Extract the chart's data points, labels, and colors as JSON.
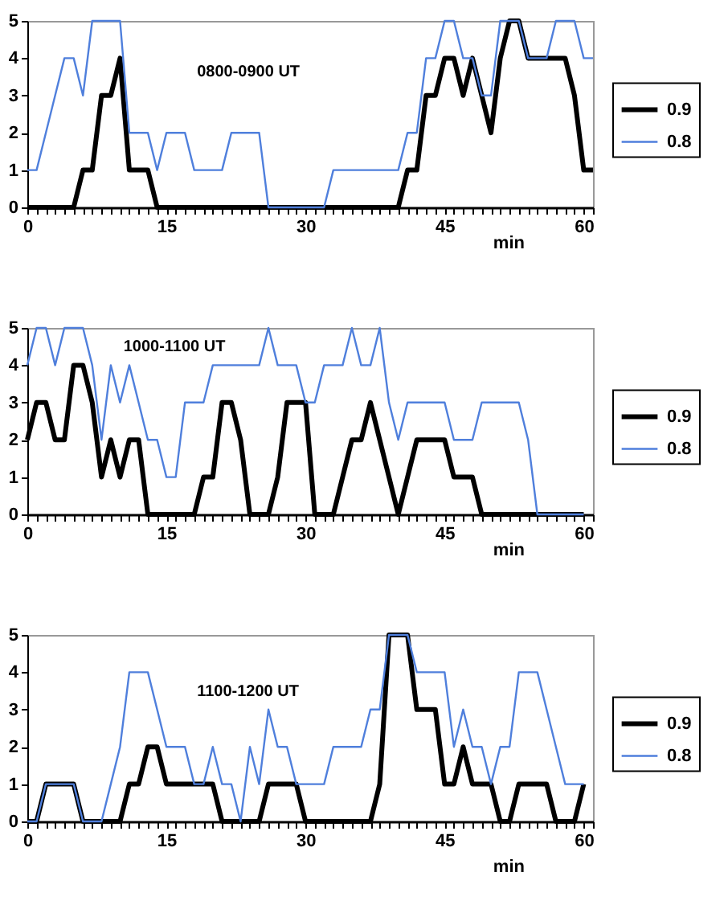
{
  "chart_data": [
    {
      "type": "line",
      "annotations": [
        "0800-0900 UT"
      ],
      "xlabel": "min",
      "legend": "right",
      "xlim": [
        0,
        61
      ],
      "ylim": [
        0,
        5
      ],
      "yticks": [
        0,
        1,
        2,
        3,
        4,
        5
      ],
      "xticks": [
        0,
        {
          "value": 1,
          "label": null
        },
        {
          "value": 2,
          "label": null
        },
        {
          "value": 3,
          "label": null
        },
        {
          "value": 4,
          "label": null
        },
        {
          "value": 5,
          "label": null
        },
        {
          "value": 6,
          "label": null
        },
        {
          "value": 7,
          "label": null
        },
        {
          "value": 8,
          "label": null
        },
        {
          "value": 9,
          "label": null
        },
        {
          "value": 10,
          "label": null
        },
        {
          "value": 11,
          "label": null
        },
        {
          "value": 12,
          "label": null
        },
        {
          "value": 13,
          "label": null
        },
        {
          "value": 14,
          "label": null
        },
        15,
        {
          "value": 16,
          "label": null
        },
        {
          "value": 17,
          "label": null
        },
        {
          "value": 18,
          "label": null
        },
        {
          "value": 19,
          "label": null
        },
        {
          "value": 20,
          "label": null
        },
        {
          "value": 21,
          "label": null
        },
        {
          "value": 22,
          "label": null
        },
        {
          "value": 23,
          "label": null
        },
        {
          "value": 24,
          "label": null
        },
        {
          "value": 25,
          "label": null
        },
        {
          "value": 26,
          "label": null
        },
        {
          "value": 27,
          "label": null
        },
        {
          "value": 28,
          "label": null
        },
        {
          "value": 29,
          "label": null
        },
        30,
        {
          "value": 31,
          "label": null
        },
        {
          "value": 32,
          "label": null
        },
        {
          "value": 33,
          "label": null
        },
        {
          "value": 34,
          "label": null
        },
        {
          "value": 35,
          "label": null
        },
        {
          "value": 36,
          "label": null
        },
        {
          "value": 37,
          "label": null
        },
        {
          "value": 38,
          "label": null
        },
        {
          "value": 39,
          "label": null
        },
        {
          "value": 40,
          "label": null
        },
        {
          "value": 41,
          "label": null
        },
        {
          "value": 42,
          "label": null
        },
        {
          "value": 43,
          "label": null
        },
        {
          "value": 44,
          "label": null
        },
        45,
        {
          "value": 46,
          "label": null
        },
        {
          "value": 47,
          "label": null
        },
        {
          "value": 48,
          "label": null
        },
        {
          "value": 49,
          "label": null
        },
        {
          "value": 50,
          "label": null
        },
        {
          "value": 51,
          "label": null
        },
        {
          "value": 52,
          "label": null
        },
        {
          "value": 53,
          "label": null
        },
        {
          "value": 54,
          "label": null
        },
        {
          "value": 55,
          "label": null
        },
        {
          "value": 56,
          "label": null
        },
        {
          "value": 57,
          "label": null
        },
        {
          "value": 58,
          "label": null
        },
        {
          "value": 59,
          "label": null
        },
        60,
        {
          "value": 61,
          "label": null
        }
      ],
      "x": [
        0,
        1,
        2,
        3,
        4,
        5,
        6,
        7,
        8,
        9,
        10,
        11,
        12,
        13,
        14,
        15,
        16,
        17,
        18,
        19,
        20,
        21,
        22,
        23,
        24,
        25,
        26,
        27,
        28,
        29,
        30,
        31,
        32,
        33,
        34,
        35,
        36,
        37,
        38,
        39,
        40,
        41,
        42,
        43,
        44,
        45,
        46,
        47,
        48,
        49,
        50,
        51,
        52,
        53,
        54,
        55,
        56,
        57,
        58,
        59,
        60,
        61
      ],
      "series": [
        {
          "name": "0.9",
          "color": "#000000",
          "values": [
            0,
            0,
            0,
            0,
            0,
            0,
            1,
            1,
            3,
            3,
            4,
            1,
            1,
            1,
            0,
            0,
            0,
            0,
            0,
            0,
            0,
            0,
            0,
            0,
            0,
            0,
            0,
            0,
            0,
            0,
            0,
            0,
            0,
            0,
            0,
            0,
            0,
            0,
            0,
            0,
            0,
            1,
            1,
            3,
            3,
            4,
            4,
            3,
            4,
            3,
            2,
            4,
            5,
            5,
            4,
            4,
            4,
            4,
            4,
            3,
            1,
            1
          ]
        },
        {
          "name": "0.8",
          "color": "#4f7fdc",
          "values": [
            1,
            1,
            2,
            3,
            4,
            4,
            3,
            5,
            5,
            5,
            5,
            2,
            2,
            2,
            1,
            2,
            2,
            2,
            1,
            1,
            1,
            1,
            2,
            2,
            2,
            2,
            0,
            0,
            0,
            0,
            0,
            0,
            0,
            1,
            1,
            1,
            1,
            1,
            1,
            1,
            1,
            2,
            2,
            4,
            4,
            5,
            5,
            4,
            4,
            3,
            3,
            5,
            5,
            5,
            4,
            4,
            4,
            5,
            5,
            5,
            4,
            4
          ]
        }
      ]
    },
    {
      "type": "line",
      "annotations": [
        "1000-1100 UT"
      ],
      "xlabel": "min",
      "legend": "right",
      "xlim": [
        0,
        61
      ],
      "ylim": [
        0,
        5
      ],
      "yticks": [
        0,
        1,
        2,
        3,
        4,
        5
      ],
      "xticks": [
        0,
        {
          "value": 1,
          "label": null
        },
        {
          "value": 2,
          "label": null
        },
        {
          "value": 3,
          "label": null
        },
        {
          "value": 4,
          "label": null
        },
        {
          "value": 5,
          "label": null
        },
        {
          "value": 6,
          "label": null
        },
        {
          "value": 7,
          "label": null
        },
        {
          "value": 8,
          "label": null
        },
        {
          "value": 9,
          "label": null
        },
        {
          "value": 10,
          "label": null
        },
        {
          "value": 11,
          "label": null
        },
        {
          "value": 12,
          "label": null
        },
        {
          "value": 13,
          "label": null
        },
        {
          "value": 14,
          "label": null
        },
        15,
        {
          "value": 16,
          "label": null
        },
        {
          "value": 17,
          "label": null
        },
        {
          "value": 18,
          "label": null
        },
        {
          "value": 19,
          "label": null
        },
        {
          "value": 20,
          "label": null
        },
        {
          "value": 21,
          "label": null
        },
        {
          "value": 22,
          "label": null
        },
        {
          "value": 23,
          "label": null
        },
        {
          "value": 24,
          "label": null
        },
        {
          "value": 25,
          "label": null
        },
        {
          "value": 26,
          "label": null
        },
        {
          "value": 27,
          "label": null
        },
        {
          "value": 28,
          "label": null
        },
        {
          "value": 29,
          "label": null
        },
        30,
        {
          "value": 31,
          "label": null
        },
        {
          "value": 32,
          "label": null
        },
        {
          "value": 33,
          "label": null
        },
        {
          "value": 34,
          "label": null
        },
        {
          "value": 35,
          "label": null
        },
        {
          "value": 36,
          "label": null
        },
        {
          "value": 37,
          "label": null
        },
        {
          "value": 38,
          "label": null
        },
        {
          "value": 39,
          "label": null
        },
        {
          "value": 40,
          "label": null
        },
        {
          "value": 41,
          "label": null
        },
        {
          "value": 42,
          "label": null
        },
        {
          "value": 43,
          "label": null
        },
        {
          "value": 44,
          "label": null
        },
        45,
        {
          "value": 46,
          "label": null
        },
        {
          "value": 47,
          "label": null
        },
        {
          "value": 48,
          "label": null
        },
        {
          "value": 49,
          "label": null
        },
        {
          "value": 50,
          "label": null
        },
        {
          "value": 51,
          "label": null
        },
        {
          "value": 52,
          "label": null
        },
        {
          "value": 53,
          "label": null
        },
        {
          "value": 54,
          "label": null
        },
        {
          "value": 55,
          "label": null
        },
        {
          "value": 56,
          "label": null
        },
        {
          "value": 57,
          "label": null
        },
        {
          "value": 58,
          "label": null
        },
        {
          "value": 59,
          "label": null
        },
        60,
        {
          "value": 61,
          "label": null
        }
      ],
      "x": [
        0,
        1,
        2,
        3,
        4,
        5,
        6,
        7,
        8,
        9,
        10,
        11,
        12,
        13,
        14,
        15,
        16,
        17,
        18,
        19,
        20,
        21,
        22,
        23,
        24,
        25,
        26,
        27,
        28,
        29,
        30,
        31,
        32,
        33,
        34,
        35,
        36,
        37,
        38,
        39,
        40,
        41,
        42,
        43,
        44,
        45,
        46,
        47,
        48,
        49,
        50,
        51,
        52,
        53,
        54,
        55,
        56,
        57,
        58,
        59,
        60
      ],
      "series": [
        {
          "name": "0.9",
          "color": "#000000",
          "values": [
            2,
            3,
            3,
            2,
            2,
            4,
            4,
            3,
            1,
            2,
            1,
            2,
            2,
            0,
            0,
            0,
            0,
            0,
            0,
            1,
            1,
            3,
            3,
            2,
            0,
            0,
            0,
            1,
            3,
            3,
            3,
            0,
            0,
            0,
            1,
            2,
            2,
            3,
            2,
            1,
            0,
            1,
            2,
            2,
            2,
            2,
            1,
            1,
            1,
            0,
            0,
            0,
            0,
            0,
            0,
            0,
            0,
            0,
            0,
            0,
            0
          ]
        },
        {
          "name": "0.8",
          "color": "#4f7fdc",
          "values": [
            4,
            5,
            5,
            4,
            5,
            5,
            5,
            4,
            2,
            4,
            3,
            4,
            3,
            2,
            2,
            1,
            1,
            3,
            3,
            3,
            4,
            4,
            4,
            4,
            4,
            4,
            5,
            4,
            4,
            4,
            3,
            3,
            4,
            4,
            4,
            5,
            4,
            4,
            5,
            3,
            2,
            3,
            3,
            3,
            3,
            3,
            2,
            2,
            2,
            3,
            3,
            3,
            3,
            3,
            2,
            0,
            0,
            0,
            0,
            0,
            0
          ]
        }
      ]
    },
    {
      "type": "line",
      "annotations": [
        "1100-1200 UT"
      ],
      "xlabel": "min",
      "legend": "right",
      "xlim": [
        0,
        61
      ],
      "ylim": [
        0,
        5
      ],
      "yticks": [
        0,
        1,
        2,
        3,
        4,
        5
      ],
      "xticks": [
        0,
        {
          "value": 1,
          "label": null
        },
        {
          "value": 2,
          "label": null
        },
        {
          "value": 3,
          "label": null
        },
        {
          "value": 4,
          "label": null
        },
        {
          "value": 5,
          "label": null
        },
        {
          "value": 6,
          "label": null
        },
        {
          "value": 7,
          "label": null
        },
        {
          "value": 8,
          "label": null
        },
        {
          "value": 9,
          "label": null
        },
        {
          "value": 10,
          "label": null
        },
        {
          "value": 11,
          "label": null
        },
        {
          "value": 12,
          "label": null
        },
        {
          "value": 13,
          "label": null
        },
        {
          "value": 14,
          "label": null
        },
        15,
        {
          "value": 16,
          "label": null
        },
        {
          "value": 17,
          "label": null
        },
        {
          "value": 18,
          "label": null
        },
        {
          "value": 19,
          "label": null
        },
        {
          "value": 20,
          "label": null
        },
        {
          "value": 21,
          "label": null
        },
        {
          "value": 22,
          "label": null
        },
        {
          "value": 23,
          "label": null
        },
        {
          "value": 24,
          "label": null
        },
        {
          "value": 25,
          "label": null
        },
        {
          "value": 26,
          "label": null
        },
        {
          "value": 27,
          "label": null
        },
        {
          "value": 28,
          "label": null
        },
        {
          "value": 29,
          "label": null
        },
        30,
        {
          "value": 31,
          "label": null
        },
        {
          "value": 32,
          "label": null
        },
        {
          "value": 33,
          "label": null
        },
        {
          "value": 34,
          "label": null
        },
        {
          "value": 35,
          "label": null
        },
        {
          "value": 36,
          "label": null
        },
        {
          "value": 37,
          "label": null
        },
        {
          "value": 38,
          "label": null
        },
        {
          "value": 39,
          "label": null
        },
        {
          "value": 40,
          "label": null
        },
        {
          "value": 41,
          "label": null
        },
        {
          "value": 42,
          "label": null
        },
        {
          "value": 43,
          "label": null
        },
        {
          "value": 44,
          "label": null
        },
        45,
        {
          "value": 46,
          "label": null
        },
        {
          "value": 47,
          "label": null
        },
        {
          "value": 48,
          "label": null
        },
        {
          "value": 49,
          "label": null
        },
        {
          "value": 50,
          "label": null
        },
        {
          "value": 51,
          "label": null
        },
        {
          "value": 52,
          "label": null
        },
        {
          "value": 53,
          "label": null
        },
        {
          "value": 54,
          "label": null
        },
        {
          "value": 55,
          "label": null
        },
        {
          "value": 56,
          "label": null
        },
        {
          "value": 57,
          "label": null
        },
        {
          "value": 58,
          "label": null
        },
        {
          "value": 59,
          "label": null
        },
        60,
        {
          "value": 61,
          "label": null
        }
      ],
      "x": [
        0,
        1,
        2,
        3,
        4,
        5,
        6,
        7,
        8,
        9,
        10,
        11,
        12,
        13,
        14,
        15,
        16,
        17,
        18,
        19,
        20,
        21,
        22,
        23,
        24,
        25,
        26,
        27,
        28,
        29,
        30,
        31,
        32,
        33,
        34,
        35,
        36,
        37,
        38,
        39,
        40,
        41,
        42,
        43,
        44,
        45,
        46,
        47,
        48,
        49,
        50,
        51,
        52,
        53,
        54,
        55,
        56,
        57,
        58,
        59,
        60
      ],
      "series": [
        {
          "name": "0.9",
          "color": "#000000",
          "values": [
            0,
            0,
            1,
            1,
            1,
            1,
            0,
            0,
            0,
            0,
            0,
            1,
            1,
            2,
            2,
            1,
            1,
            1,
            1,
            1,
            1,
            0,
            0,
            0,
            0,
            0,
            1,
            1,
            1,
            1,
            0,
            0,
            0,
            0,
            0,
            0,
            0,
            0,
            1,
            5,
            5,
            5,
            3,
            3,
            3,
            1,
            1,
            2,
            1,
            1,
            1,
            0,
            0,
            1,
            1,
            1,
            1,
            0,
            0,
            0,
            1
          ]
        },
        {
          "name": "0.8",
          "color": "#4f7fdc",
          "values": [
            0,
            0,
            1,
            1,
            1,
            1,
            0,
            0,
            0,
            1,
            2,
            4,
            4,
            4,
            3,
            2,
            2,
            2,
            1,
            1,
            2,
            1,
            1,
            0,
            2,
            1,
            3,
            2,
            2,
            1,
            1,
            1,
            1,
            2,
            2,
            2,
            2,
            3,
            3,
            5,
            5,
            5,
            4,
            4,
            4,
            4,
            2,
            3,
            2,
            2,
            1,
            2,
            2,
            4,
            4,
            4,
            3,
            2,
            1,
            1,
            1
          ]
        }
      ]
    }
  ]
}
